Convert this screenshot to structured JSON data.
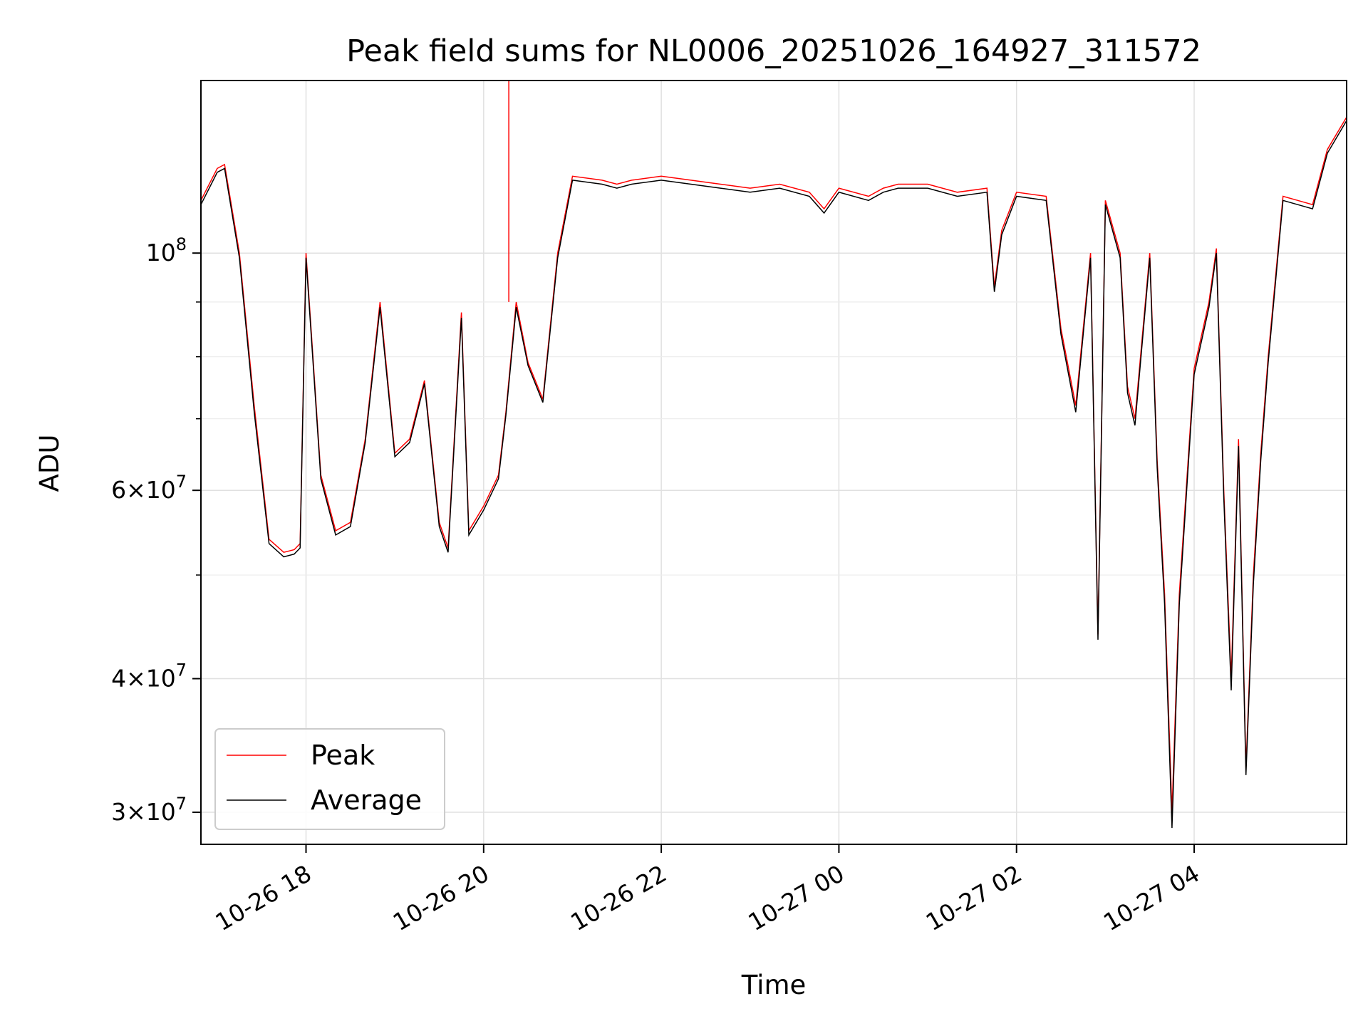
{
  "chart_data": {
    "type": "line",
    "title": "Peak field sums for NL0006_20251026_164927_311572",
    "xlabel": "Time",
    "ylabel": "ADU",
    "yscale": "log",
    "ylim": [
      28000000,
      145000000
    ],
    "xlim": [
      "2025-10-26 16:49",
      "2025-10-27 05:43"
    ],
    "grid": true,
    "legend_position": "lower-left",
    "x_ticks": [
      "10-26 18",
      "10-26 20",
      "10-26 22",
      "10-27 00",
      "10-27 02",
      "10-27 04"
    ],
    "y_ticks": [
      {
        "value": 100000000,
        "mantissa": "",
        "base": "10",
        "exp": "8"
      },
      {
        "value": 60000000,
        "mantissa": "6×",
        "base": "10",
        "exp": "7"
      },
      {
        "value": 40000000,
        "mantissa": "4×",
        "base": "10",
        "exp": "7"
      },
      {
        "value": 30000000,
        "mantissa": "3×",
        "base": "10",
        "exp": "7"
      }
    ],
    "minor_y_ticks": [
      50000000,
      70000000,
      80000000,
      90000000
    ],
    "x": [
      "2025-10-26 16:49",
      "2025-10-26 17:00",
      "2025-10-26 17:05",
      "2025-10-26 17:15",
      "2025-10-26 17:25",
      "2025-10-26 17:35",
      "2025-10-26 17:45",
      "2025-10-26 17:52",
      "2025-10-26 17:56",
      "2025-10-26 18:00",
      "2025-10-26 18:10",
      "2025-10-26 18:20",
      "2025-10-26 18:30",
      "2025-10-26 18:40",
      "2025-10-26 18:50",
      "2025-10-26 19:00",
      "2025-10-26 19:10",
      "2025-10-26 19:20",
      "2025-10-26 19:30",
      "2025-10-26 19:36",
      "2025-10-26 19:45",
      "2025-10-26 19:50",
      "2025-10-26 20:00",
      "2025-10-26 20:10",
      "2025-10-26 20:15",
      "2025-10-26 20:22",
      "2025-10-26 20:30",
      "2025-10-26 20:40",
      "2025-10-26 20:50",
      "2025-10-26 21:00",
      "2025-10-26 21:20",
      "2025-10-26 21:30",
      "2025-10-26 21:40",
      "2025-10-26 22:00",
      "2025-10-26 22:20",
      "2025-10-26 22:40",
      "2025-10-26 23:00",
      "2025-10-26 23:20",
      "2025-10-26 23:40",
      "2025-10-26 23:50",
      "2025-10-27 00:00",
      "2025-10-27 00:20",
      "2025-10-27 00:30",
      "2025-10-27 00:40",
      "2025-10-27 01:00",
      "2025-10-27 01:20",
      "2025-10-27 01:40",
      "2025-10-27 01:45",
      "2025-10-27 01:50",
      "2025-10-27 02:00",
      "2025-10-27 02:20",
      "2025-10-27 02:30",
      "2025-10-27 02:40",
      "2025-10-27 02:50",
      "2025-10-27 02:55",
      "2025-10-27 03:00",
      "2025-10-27 03:10",
      "2025-10-27 03:15",
      "2025-10-27 03:20",
      "2025-10-27 03:30",
      "2025-10-27 03:35",
      "2025-10-27 03:40",
      "2025-10-27 03:45",
      "2025-10-27 03:50",
      "2025-10-27 04:00",
      "2025-10-27 04:10",
      "2025-10-27 04:15",
      "2025-10-27 04:20",
      "2025-10-27 04:25",
      "2025-10-27 04:30",
      "2025-10-27 04:35",
      "2025-10-27 04:40",
      "2025-10-27 04:45",
      "2025-10-27 04:50",
      "2025-10-27 05:00",
      "2025-10-27 05:10",
      "2025-10-27 05:20",
      "2025-10-27 05:30",
      "2025-10-27 05:43"
    ],
    "series": [
      {
        "name": "Peak",
        "color": "#ff0000",
        "values": [
          112000000,
          120000000,
          121000000,
          100000000,
          72000000,
          54000000,
          52500000,
          52800000,
          53500000,
          100000000,
          62000000,
          55000000,
          56000000,
          67000000,
          90000000,
          65000000,
          67000000,
          76000000,
          56000000,
          53000000,
          88000000,
          55000000,
          58000000,
          62000000,
          71000000,
          90000000,
          79000000,
          73000000,
          100000000,
          118000000,
          117000000,
          116000000,
          117000000,
          118000000,
          117000000,
          116000000,
          115000000,
          116000000,
          114000000,
          110000000,
          115000000,
          113000000,
          115000000,
          116000000,
          116000000,
          114000000,
          115000000,
          93000000,
          105000000,
          114000000,
          113000000,
          85000000,
          72000000,
          100000000,
          44000000,
          112000000,
          100000000,
          75000000,
          70000000,
          100000000,
          64000000,
          48000000,
          30000000,
          48000000,
          78000000,
          90000000,
          101000000,
          60000000,
          40000000,
          67000000,
          33000000,
          50000000,
          65000000,
          80000000,
          113000000,
          112000000,
          111000000,
          125000000,
          134000000
        ]
      },
      {
        "name": "Average",
        "color": "#000000",
        "values": [
          111000000,
          119000000,
          120000000,
          99000000,
          71000000,
          53500000,
          52000000,
          52300000,
          53000000,
          99000000,
          61500000,
          54500000,
          55500000,
          66500000,
          89000000,
          64500000,
          66500000,
          75500000,
          55500000,
          52500000,
          87000000,
          54500000,
          57500000,
          61500000,
          70500000,
          89000000,
          78500000,
          72500000,
          99000000,
          117000000,
          116000000,
          115000000,
          116000000,
          117000000,
          116000000,
          115000000,
          114000000,
          115000000,
          113000000,
          109000000,
          114000000,
          112000000,
          114000000,
          115000000,
          115000000,
          113000000,
          114000000,
          92000000,
          104000000,
          113000000,
          112000000,
          84000000,
          71000000,
          99000000,
          43500000,
          111000000,
          99000000,
          74000000,
          69000000,
          99000000,
          63000000,
          47000000,
          29000000,
          47000000,
          77000000,
          89000000,
          100000000,
          59000000,
          39000000,
          66000000,
          32500000,
          49000000,
          64000000,
          79000000,
          112000000,
          111000000,
          110000000,
          124000000,
          133000000
        ]
      }
    ],
    "annotations": [
      {
        "x": "2025-10-26 20:17",
        "series": "Peak",
        "value": 145000000,
        "note": "spike"
      }
    ]
  }
}
